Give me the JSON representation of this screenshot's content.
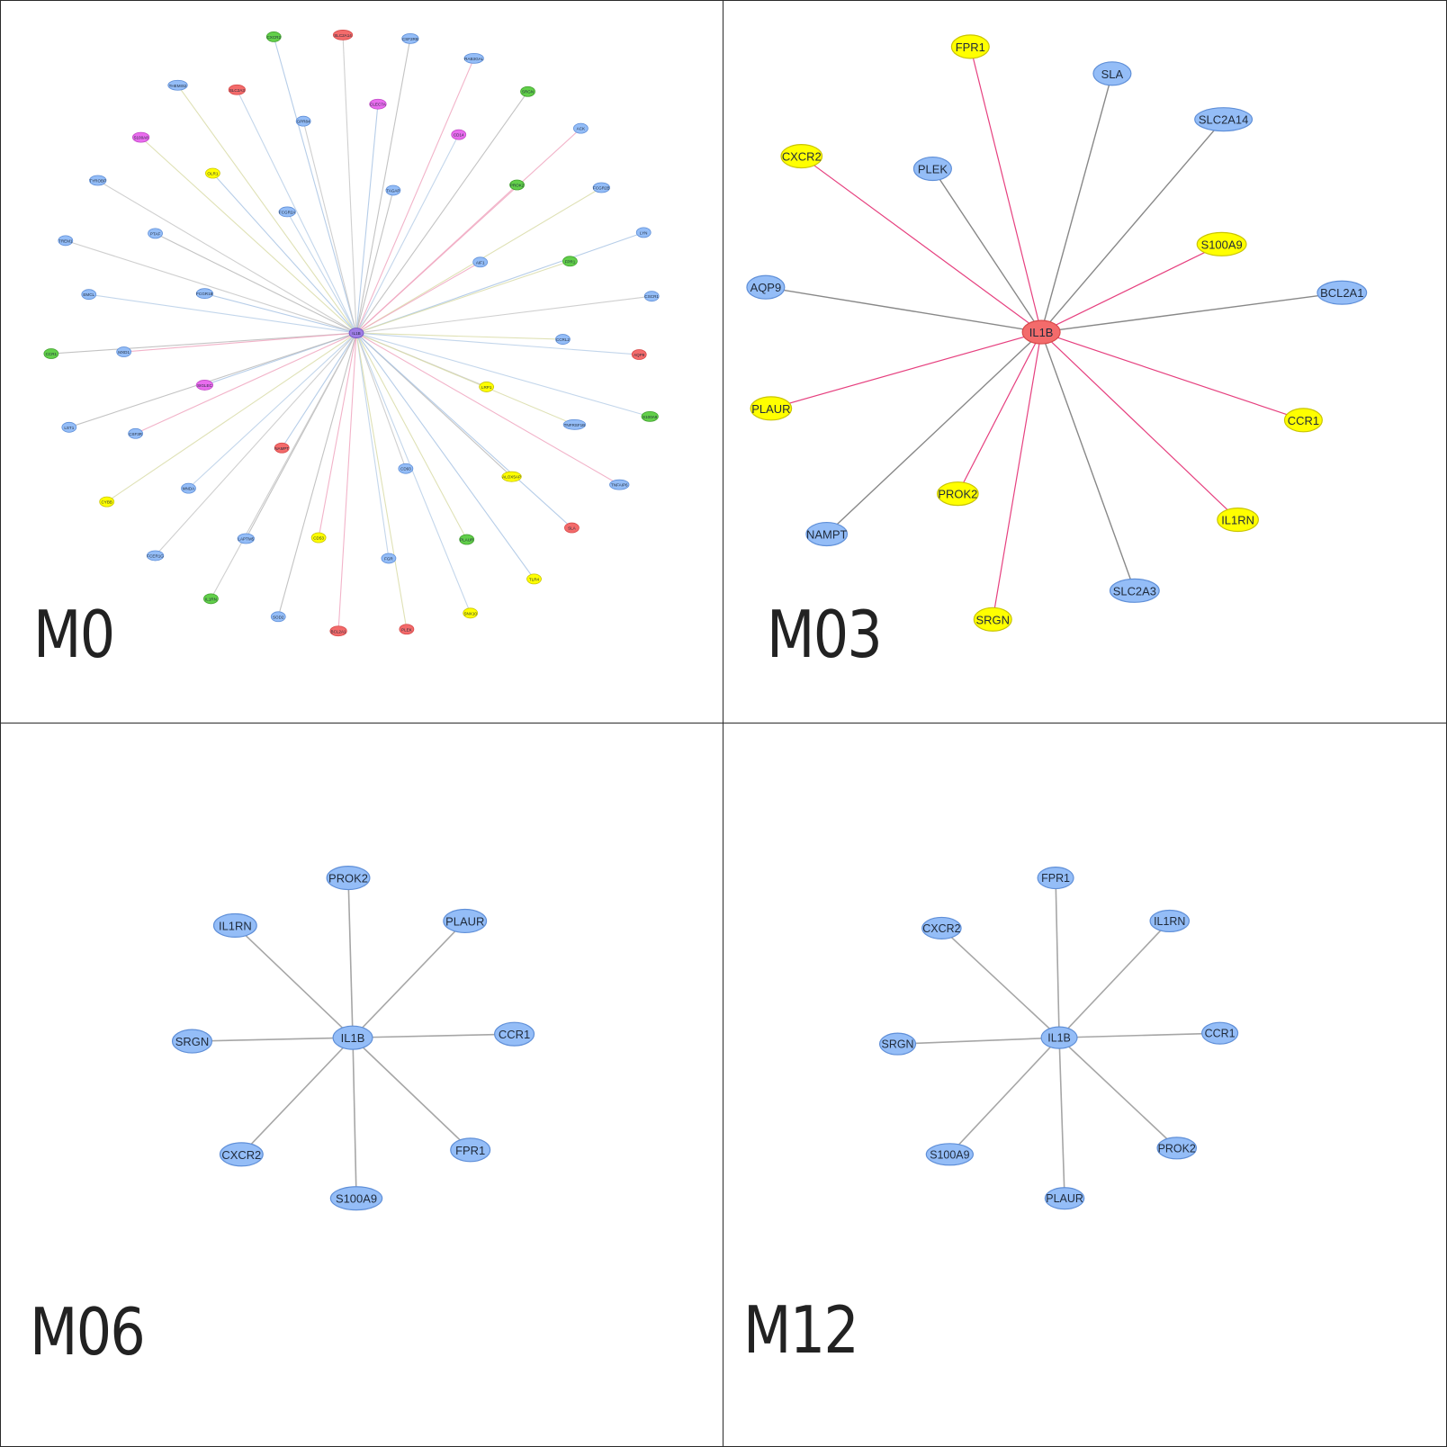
{
  "colors": {
    "blue": "#94bdf7",
    "yellow": "#ffff00",
    "red": "#f36b6b",
    "green": "#62cf4a",
    "magenta": "#e96cee",
    "purple": "#9f7ee6",
    "edge_gray": "#9a9a9a",
    "edge_pink": "#e6407f",
    "edge_blue": "#a9c4e4"
  },
  "panels": [
    {
      "id": "m0",
      "label": "M0",
      "hub": "IL1B",
      "hub_color": "purple",
      "nodes": [
        {
          "name": "CXCR2",
          "color": "green"
        },
        {
          "name": "SLC2A14",
          "color": "red"
        },
        {
          "name": "CSF2RB",
          "color": "blue"
        },
        {
          "name": "RAB3GAL",
          "color": "blue"
        },
        {
          "name": "THEMIS2",
          "color": "blue"
        },
        {
          "name": "SLC2A3",
          "color": "red"
        },
        {
          "name": "CLEC7A",
          "color": "magenta"
        },
        {
          "name": "GPR84",
          "color": "blue"
        },
        {
          "name": "SRGN",
          "color": "green"
        },
        {
          "name": "ACK",
          "color": "blue"
        },
        {
          "name": "S100A8",
          "color": "magenta"
        },
        {
          "name": "CD14",
          "color": "magenta"
        },
        {
          "name": "OLR1",
          "color": "yellow"
        },
        {
          "name": "TYROBP",
          "color": "blue"
        },
        {
          "name": "TAGAP",
          "color": "blue"
        },
        {
          "name": "PROK2",
          "color": "green"
        },
        {
          "name": "FCGR2B",
          "color": "blue"
        },
        {
          "name": "FCGR2A",
          "color": "blue"
        },
        {
          "name": "LYN",
          "color": "blue"
        },
        {
          "name": "TREM1",
          "color": "blue"
        },
        {
          "name": "PTAF",
          "color": "blue"
        },
        {
          "name": "AIF1",
          "color": "blue"
        },
        {
          "name": "FPR1",
          "color": "green"
        },
        {
          "name": "EMCL",
          "color": "blue"
        },
        {
          "name": "FCGR1B",
          "color": "blue"
        },
        {
          "name": "CSCR1",
          "color": "blue"
        },
        {
          "name": "CCR1",
          "color": "green"
        },
        {
          "name": "MXD1",
          "color": "blue"
        },
        {
          "name": "CCRL2",
          "color": "blue"
        },
        {
          "name": "AQP9",
          "color": "red"
        },
        {
          "name": "SIGLEC",
          "color": "magenta"
        },
        {
          "name": "LRP1",
          "color": "yellow"
        },
        {
          "name": "LST1",
          "color": "blue"
        },
        {
          "name": "CSF3R",
          "color": "blue"
        },
        {
          "name": "TNFRSF1B",
          "color": "blue"
        },
        {
          "name": "S100A9",
          "color": "green"
        },
        {
          "name": "NAMPT",
          "color": "red"
        },
        {
          "name": "CD93",
          "color": "blue"
        },
        {
          "name": "ALOX5AP",
          "color": "yellow"
        },
        {
          "name": "TNFAIP6",
          "color": "blue"
        },
        {
          "name": "CYBB",
          "color": "yellow"
        },
        {
          "name": "MNDA",
          "color": "blue"
        },
        {
          "name": "SLA",
          "color": "red"
        },
        {
          "name": "FCER1G",
          "color": "blue"
        },
        {
          "name": "LAPTM5",
          "color": "blue"
        },
        {
          "name": "CD53",
          "color": "yellow"
        },
        {
          "name": "PLAUR",
          "color": "green"
        },
        {
          "name": "FGR",
          "color": "blue"
        },
        {
          "name": "TLR4",
          "color": "yellow"
        },
        {
          "name": "IL1RN",
          "color": "green"
        },
        {
          "name": "SOD2",
          "color": "blue"
        },
        {
          "name": "BCL2A1",
          "color": "red"
        },
        {
          "name": "PLEK",
          "color": "red"
        },
        {
          "name": "SNX10",
          "color": "yellow"
        }
      ]
    },
    {
      "id": "m03",
      "label": "M03",
      "hub": "IL1B",
      "hub_color": "red",
      "nodes": [
        {
          "name": "FPR1",
          "color": "yellow",
          "edge": "pink"
        },
        {
          "name": "SLA",
          "color": "blue",
          "edge": "gray"
        },
        {
          "name": "SLC2A14",
          "color": "blue",
          "edge": "gray"
        },
        {
          "name": "CXCR2",
          "color": "yellow",
          "edge": "pink"
        },
        {
          "name": "PLEK",
          "color": "blue",
          "edge": "gray"
        },
        {
          "name": "S100A9",
          "color": "yellow",
          "edge": "pink"
        },
        {
          "name": "AQP9",
          "color": "blue",
          "edge": "gray"
        },
        {
          "name": "BCL2A1",
          "color": "blue",
          "edge": "gray"
        },
        {
          "name": "PLAUR",
          "color": "yellow",
          "edge": "pink"
        },
        {
          "name": "CCR1",
          "color": "yellow",
          "edge": "pink"
        },
        {
          "name": "PROK2",
          "color": "yellow",
          "edge": "pink"
        },
        {
          "name": "IL1RN",
          "color": "yellow",
          "edge": "pink"
        },
        {
          "name": "NAMPT",
          "color": "blue",
          "edge": "gray"
        },
        {
          "name": "SLC2A3",
          "color": "blue",
          "edge": "gray"
        },
        {
          "name": "SRGN",
          "color": "yellow",
          "edge": "pink"
        }
      ]
    },
    {
      "id": "m06",
      "label": "M06",
      "hub": "IL1B",
      "hub_color": "blue",
      "nodes": [
        {
          "name": "PROK2",
          "color": "blue"
        },
        {
          "name": "IL1RN",
          "color": "blue"
        },
        {
          "name": "PLAUR",
          "color": "blue"
        },
        {
          "name": "SRGN",
          "color": "blue"
        },
        {
          "name": "CCR1",
          "color": "blue"
        },
        {
          "name": "CXCR2",
          "color": "blue"
        },
        {
          "name": "FPR1",
          "color": "blue"
        },
        {
          "name": "S100A9",
          "color": "blue"
        }
      ]
    },
    {
      "id": "m12",
      "label": "M12",
      "hub": "IL1B",
      "hub_color": "blue",
      "nodes": [
        {
          "name": "FPR1",
          "color": "blue"
        },
        {
          "name": "CXCR2",
          "color": "blue"
        },
        {
          "name": "IL1RN",
          "color": "blue"
        },
        {
          "name": "SRGN",
          "color": "blue"
        },
        {
          "name": "CCR1",
          "color": "blue"
        },
        {
          "name": "S100A9",
          "color": "blue"
        },
        {
          "name": "PROK2",
          "color": "blue"
        },
        {
          "name": "PLAUR",
          "color": "blue"
        }
      ]
    }
  ]
}
